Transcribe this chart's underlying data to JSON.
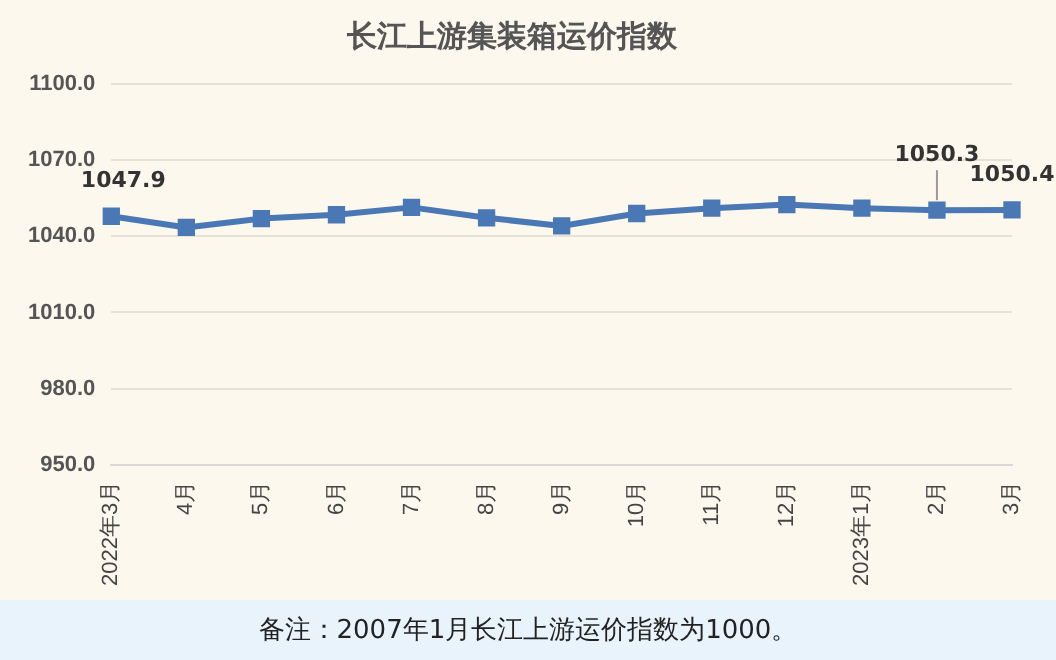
{
  "chart_data": {
    "type": "line",
    "title": "长江上游集装箱运价指数",
    "categories": [
      "2022年3月",
      "4月",
      "5月",
      "6月",
      "7月",
      "8月",
      "9月",
      "10月",
      "11月",
      "12月",
      "2023年1月",
      "2月",
      "3月"
    ],
    "series": [
      {
        "color": "#4a78b5",
        "values": [
          1047.9,
          1043.5,
          1047,
          1048.5,
          1051.4,
          1047.3,
          1044.1,
          1049,
          1051.1,
          1052.5,
          1051.1,
          1050.3,
          1050.4
        ],
        "value_labels": [
          "1047.9",
          null,
          null,
          null,
          null,
          null,
          null,
          null,
          null,
          null,
          null,
          "1050.3",
          "1050.4"
        ]
      }
    ],
    "ylim": [
      950,
      1100
    ],
    "yticks": [
      {
        "value": 950,
        "label": "950.0"
      },
      {
        "value": 980,
        "label": "980.0"
      },
      {
        "value": 1010,
        "label": "1010.0"
      },
      {
        "value": 1040,
        "label": "1040.0"
      },
      {
        "value": 1070,
        "label": "1070.0"
      },
      {
        "value": 1100,
        "label": "1100.0"
      }
    ],
    "grid": "y",
    "legend": false,
    "marker": "square",
    "line_style": "solid",
    "annotations": [
      "备注：2007年1月长江上游运价指数为1000。"
    ]
  }
}
